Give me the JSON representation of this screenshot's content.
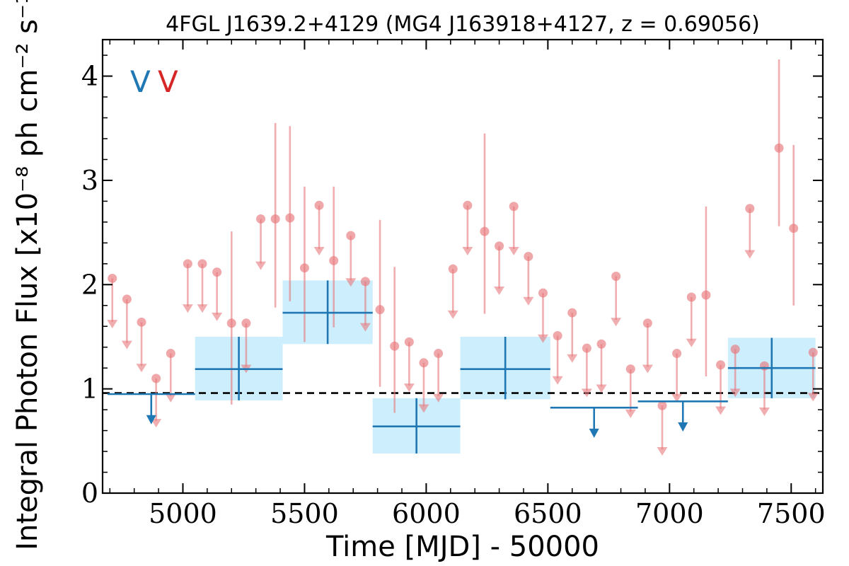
{
  "chart_data": {
    "type": "scatter",
    "title": "4FGL J1639.2+4129 (MG4 J163918+4127, z = 0.69056)",
    "xlabel": "Time [MJD] - 50000",
    "ylabel": "Integral Photon Flux [x10⁻⁸ ph cm⁻² s⁻¹]",
    "xlim": [
      4670,
      7630
    ],
    "ylim": [
      0,
      4.35
    ],
    "xticks": [
      5000,
      5500,
      6000,
      6500,
      7000,
      7500
    ],
    "yticks": [
      0,
      1,
      2,
      3,
      4
    ],
    "grid": false,
    "legend": {
      "placement": "top-left",
      "entries": [
        {
          "label": "V",
          "color": "#1f77b4"
        },
        {
          "label": "V",
          "color": "#d62728"
        }
      ]
    },
    "reference_line": {
      "y": 0.96,
      "style": "dashed",
      "color": "#000000"
    },
    "series": [
      {
        "color": "#1f77b4",
        "band_color": "#cdeefc",
        "bins": [
          {
            "x_start": 4690,
            "x_end": 5050,
            "upper_limit": true,
            "y": 0.95,
            "arrow_to": 0.66
          },
          {
            "x_start": 5050,
            "x_end": 5410,
            "upper_limit": false,
            "y": 1.19,
            "y_low": 0.89,
            "y_high": 1.5
          },
          {
            "x_start": 5410,
            "x_end": 5780,
            "upper_limit": false,
            "y": 1.73,
            "y_low": 1.43,
            "y_high": 2.04
          },
          {
            "x_start": 5780,
            "x_end": 6140,
            "upper_limit": false,
            "y": 0.64,
            "y_low": 0.38,
            "y_high": 0.91
          },
          {
            "x_start": 6140,
            "x_end": 6510,
            "upper_limit": false,
            "y": 1.19,
            "y_low": 0.9,
            "y_high": 1.5
          },
          {
            "x_start": 6510,
            "x_end": 6870,
            "upper_limit": true,
            "y": 0.82,
            "arrow_to": 0.53
          },
          {
            "x_start": 6870,
            "x_end": 7240,
            "upper_limit": true,
            "y": 0.88,
            "arrow_to": 0.59
          },
          {
            "x_start": 7240,
            "x_end": 7600,
            "upper_limit": false,
            "y": 1.2,
            "y_low": 0.91,
            "y_high": 1.49
          }
        ]
      },
      {
        "color": "#e8787c",
        "points": [
          {
            "x": 4710,
            "y": 2.06,
            "ul": true,
            "to": 1.58
          },
          {
            "x": 4770,
            "y": 1.86,
            "ul": true,
            "to": 1.38
          },
          {
            "x": 4830,
            "y": 1.64,
            "ul": true,
            "to": 1.16
          },
          {
            "x": 4890,
            "y": 1.1,
            "ul": true,
            "to": 0.63
          },
          {
            "x": 4950,
            "y": 1.34,
            "ul": true,
            "to": 0.87
          },
          {
            "x": 5020,
            "y": 2.2,
            "ul": true,
            "to": 1.73
          },
          {
            "x": 5080,
            "y": 2.2,
            "ul": true,
            "to": 1.73
          },
          {
            "x": 5140,
            "y": 2.12,
            "ul": true,
            "to": 1.65
          },
          {
            "x": 5200,
            "y": 1.63,
            "ul": false,
            "lo": 0.85,
            "hi": 2.51
          },
          {
            "x": 5260,
            "y": 1.63,
            "ul": true,
            "to": 1.15
          },
          {
            "x": 5320,
            "y": 2.63,
            "ul": true,
            "to": 2.14
          },
          {
            "x": 5380,
            "y": 2.63,
            "ul": false,
            "lo": 1.78,
            "hi": 3.55
          },
          {
            "x": 5440,
            "y": 2.64,
            "ul": false,
            "lo": 1.84,
            "hi": 3.52
          },
          {
            "x": 5500,
            "y": 2.16,
            "ul": false,
            "lo": 1.45,
            "hi": 2.94
          },
          {
            "x": 5560,
            "y": 2.76,
            "ul": true,
            "to": 2.28
          },
          {
            "x": 5620,
            "y": 2.23,
            "ul": false,
            "lo": 1.59,
            "hi": 2.94
          },
          {
            "x": 5690,
            "y": 2.47,
            "ul": true,
            "to": 1.98
          },
          {
            "x": 5750,
            "y": 2.03,
            "ul": true,
            "to": 1.55
          },
          {
            "x": 5810,
            "y": 1.76,
            "ul": false,
            "lo": 1.02,
            "hi": 2.62
          },
          {
            "x": 5870,
            "y": 1.41,
            "ul": false,
            "lo": 0.77,
            "hi": 2.17
          },
          {
            "x": 5930,
            "y": 1.45,
            "ul": true,
            "to": 0.97
          },
          {
            "x": 5990,
            "y": 1.25,
            "ul": true,
            "to": 0.77
          },
          {
            "x": 6050,
            "y": 1.34,
            "ul": true,
            "to": 0.87
          },
          {
            "x": 6110,
            "y": 2.15,
            "ul": true,
            "to": 1.67
          },
          {
            "x": 6170,
            "y": 2.76,
            "ul": true,
            "to": 2.28
          },
          {
            "x": 6240,
            "y": 2.51,
            "ul": false,
            "lo": 1.72,
            "hi": 3.45
          },
          {
            "x": 6300,
            "y": 2.37,
            "ul": true,
            "to": 1.9
          },
          {
            "x": 6360,
            "y": 2.75,
            "ul": true,
            "to": 2.28
          },
          {
            "x": 6420,
            "y": 2.27,
            "ul": true,
            "to": 1.8
          },
          {
            "x": 6480,
            "y": 1.92,
            "ul": true,
            "to": 1.44
          },
          {
            "x": 6540,
            "y": 1.51,
            "ul": true,
            "to": 1.04
          },
          {
            "x": 6600,
            "y": 1.73,
            "ul": true,
            "to": 1.25
          },
          {
            "x": 6660,
            "y": 1.39,
            "ul": true,
            "to": 0.92
          },
          {
            "x": 6720,
            "y": 1.43,
            "ul": true,
            "to": 0.96
          },
          {
            "x": 6780,
            "y": 2.08,
            "ul": true,
            "to": 1.6
          },
          {
            "x": 6840,
            "y": 1.19,
            "ul": true,
            "to": 0.72
          },
          {
            "x": 6910,
            "y": 1.63,
            "ul": true,
            "to": 1.15
          },
          {
            "x": 6970,
            "y": 0.84,
            "ul": true,
            "to": 0.36
          },
          {
            "x": 7030,
            "y": 1.34,
            "ul": true,
            "to": 0.87
          },
          {
            "x": 7090,
            "y": 1.88,
            "ul": true,
            "to": 1.4
          },
          {
            "x": 7150,
            "y": 1.9,
            "ul": false,
            "lo": 1.12,
            "hi": 2.75
          },
          {
            "x": 7210,
            "y": 1.23,
            "ul": true,
            "to": 0.75
          },
          {
            "x": 7270,
            "y": 1.38,
            "ul": true,
            "to": 0.92
          },
          {
            "x": 7330,
            "y": 2.73,
            "ul": true,
            "to": 2.25
          },
          {
            "x": 7390,
            "y": 1.22,
            "ul": true,
            "to": 0.74
          },
          {
            "x": 7450,
            "y": 3.31,
            "ul": false,
            "lo": 2.56,
            "hi": 4.16
          },
          {
            "x": 7510,
            "y": 2.54,
            "ul": false,
            "lo": 1.8,
            "hi": 3.34
          },
          {
            "x": 7590,
            "y": 1.35,
            "ul": true,
            "to": 0.88
          }
        ]
      }
    ]
  }
}
